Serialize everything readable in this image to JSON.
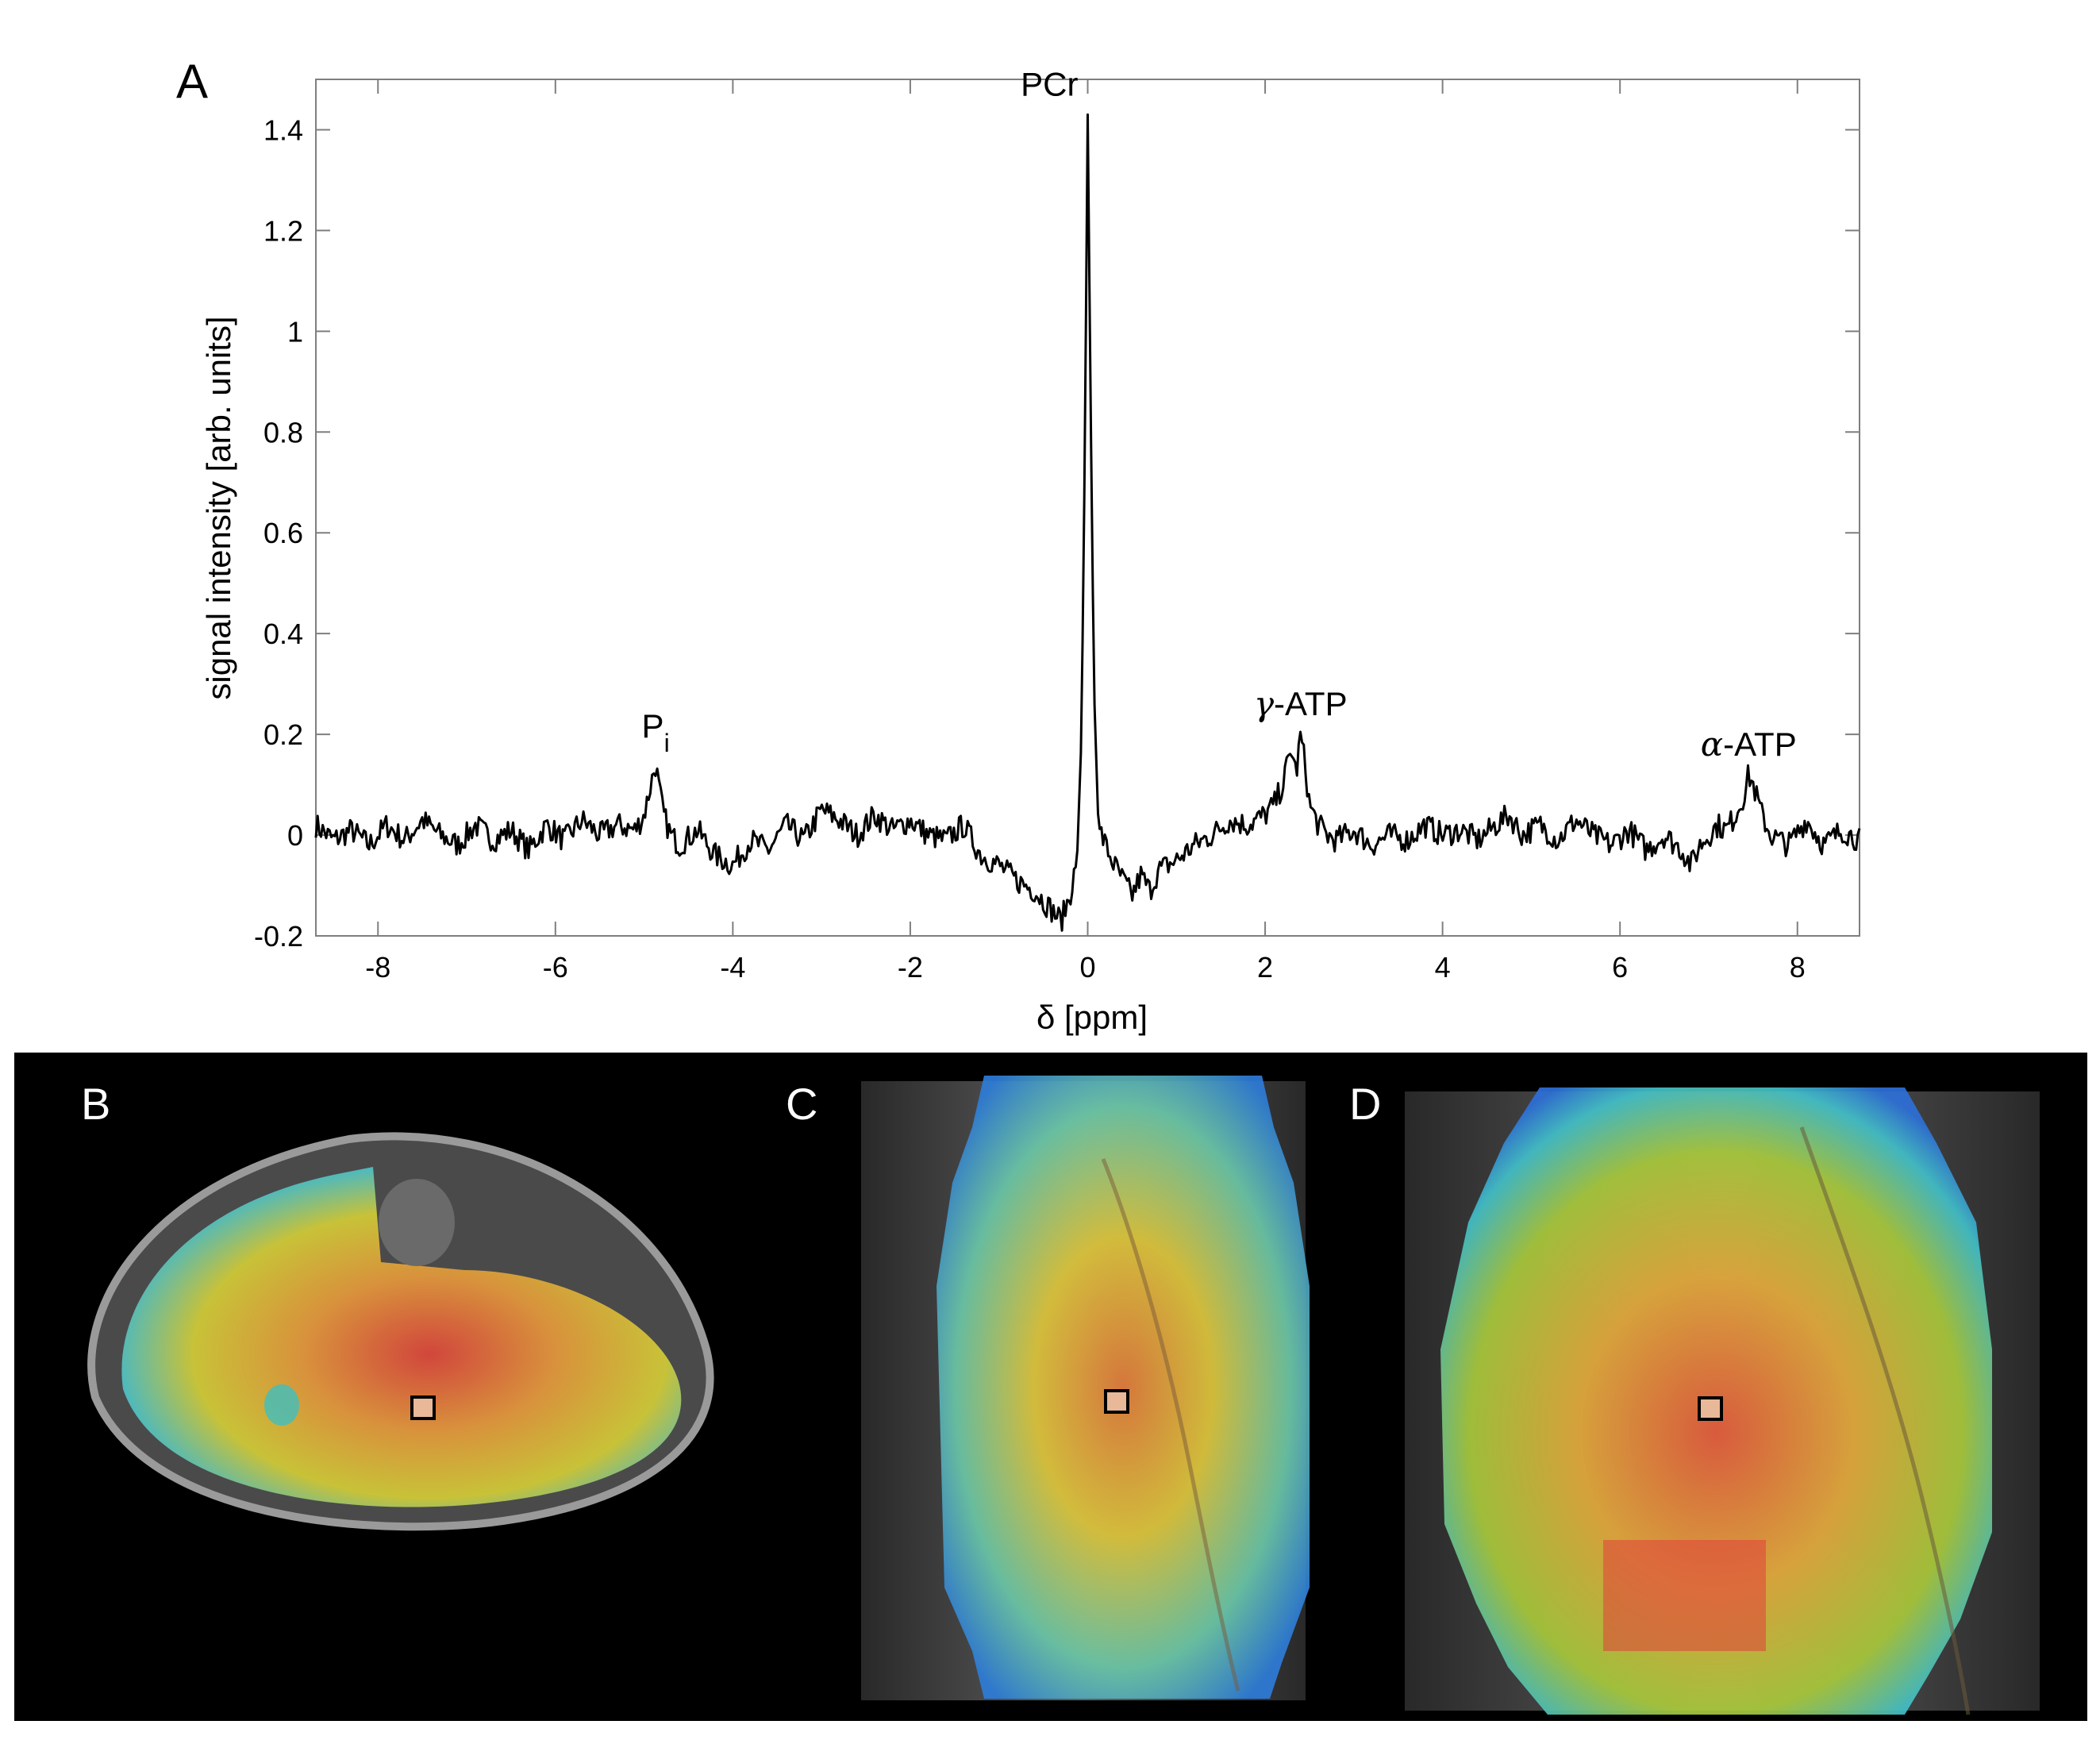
{
  "panels": {
    "A": "A",
    "B": "B",
    "C": "C",
    "D": "D"
  },
  "chart_data": {
    "type": "line",
    "xlabel": "δ [ppm]",
    "ylabel": "signal intensity [arb. units]",
    "xlim": [
      -8.7,
      8.7
    ],
    "ylim": [
      -0.2,
      1.5
    ],
    "x_ticks": [
      -8,
      -6,
      -4,
      -2,
      0,
      2,
      4,
      6,
      8
    ],
    "y_ticks": [
      -0.2,
      0,
      0.2,
      0.4,
      0.6,
      0.8,
      1,
      1.2,
      1.4
    ],
    "x_tick_labels": [
      "-8",
      "-6",
      "-4",
      "-2",
      "0",
      "2",
      "4",
      "6",
      "8"
    ],
    "y_tick_labels": [
      "-0.2",
      "0",
      "0.2",
      "0.4",
      "0.6",
      "0.8",
      "1",
      "1.2",
      "1.4"
    ],
    "grid": false,
    "line_color": "#000000",
    "peaks": [
      {
        "label": "P",
        "subscript": "i",
        "x": -4.87,
        "y": 0.14
      },
      {
        "label": "PCr",
        "x": 0.0,
        "y": 1.43
      },
      {
        "greek": "γ",
        "label": "-ATP",
        "x": 2.4,
        "y": 0.2
      },
      {
        "greek": "α",
        "label": "-ATP",
        "x": 7.45,
        "y": 0.12
      }
    ],
    "series": [
      {
        "x": [
          -8.7,
          -8.5,
          -8.3,
          -8.1,
          -7.9,
          -7.7,
          -7.5,
          -7.3,
          -7.1,
          -6.9,
          -6.7,
          -6.5,
          -6.3,
          -6.1,
          -5.9,
          -5.7,
          -5.5,
          -5.3,
          -5.1,
          -5.0,
          -4.95,
          -4.9,
          -4.87,
          -4.83,
          -4.78,
          -4.7,
          -4.6,
          -4.4,
          -4.2,
          -4.0,
          -3.8,
          -3.6,
          -3.4,
          -3.2,
          -3.0,
          -2.8,
          -2.6,
          -2.4,
          -2.2,
          -2.0,
          -1.8,
          -1.6,
          -1.4,
          -1.2,
          -1.0,
          -0.8,
          -0.6,
          -0.45,
          -0.3,
          -0.2,
          -0.12,
          -0.07,
          -0.03,
          0.0,
          0.03,
          0.07,
          0.12,
          0.2,
          0.3,
          0.4,
          0.5,
          0.6,
          0.7,
          0.8,
          1.0,
          1.2,
          1.4,
          1.6,
          1.8,
          2.0,
          2.1,
          2.2,
          2.25,
          2.3,
          2.35,
          2.4,
          2.45,
          2.5,
          2.6,
          2.7,
          2.8,
          3.0,
          3.2,
          3.4,
          3.6,
          3.8,
          4.0,
          4.2,
          4.4,
          4.6,
          4.75,
          4.9,
          5.1,
          5.3,
          5.5,
          5.7,
          5.9,
          6.1,
          6.3,
          6.5,
          6.7,
          6.8,
          6.9,
          7.0,
          7.1,
          7.2,
          7.3,
          7.4,
          7.45,
          7.5,
          7.6,
          7.7,
          7.9,
          8.1,
          8.3,
          8.5,
          8.7
        ],
        "y": [
          0.02,
          -0.01,
          0.01,
          -0.02,
          0.02,
          -0.01,
          0.03,
          0.0,
          -0.02,
          0.02,
          -0.01,
          0.01,
          -0.03,
          0.02,
          -0.01,
          0.03,
          0.0,
          0.02,
          0.01,
          0.04,
          0.08,
          0.12,
          0.14,
          0.09,
          0.04,
          0.0,
          -0.02,
          0.01,
          -0.04,
          -0.06,
          -0.01,
          -0.03,
          0.02,
          -0.01,
          0.05,
          0.03,
          0.0,
          0.04,
          0.01,
          0.03,
          0.0,
          -0.01,
          0.02,
          -0.04,
          -0.06,
          -0.09,
          -0.11,
          -0.14,
          -0.17,
          -0.12,
          -0.05,
          0.2,
          0.8,
          1.43,
          0.9,
          0.3,
          0.02,
          -0.02,
          -0.06,
          -0.09,
          -0.12,
          -0.08,
          -0.11,
          -0.07,
          -0.05,
          -0.02,
          0.0,
          0.03,
          0.02,
          0.04,
          0.06,
          0.1,
          0.14,
          0.17,
          0.12,
          0.2,
          0.14,
          0.06,
          0.02,
          0.0,
          -0.01,
          0.01,
          -0.02,
          0.0,
          -0.01,
          0.02,
          0.0,
          0.01,
          -0.01,
          0.02,
          0.04,
          0.0,
          0.02,
          -0.01,
          0.03,
          0.0,
          -0.02,
          0.01,
          -0.03,
          0.0,
          -0.03,
          -0.06,
          -0.02,
          0.0,
          0.02,
          0.01,
          0.04,
          0.08,
          0.12,
          0.1,
          0.04,
          0.0,
          -0.02,
          0.03,
          -0.02,
          0.01,
          -0.01
        ]
      }
    ]
  }
}
